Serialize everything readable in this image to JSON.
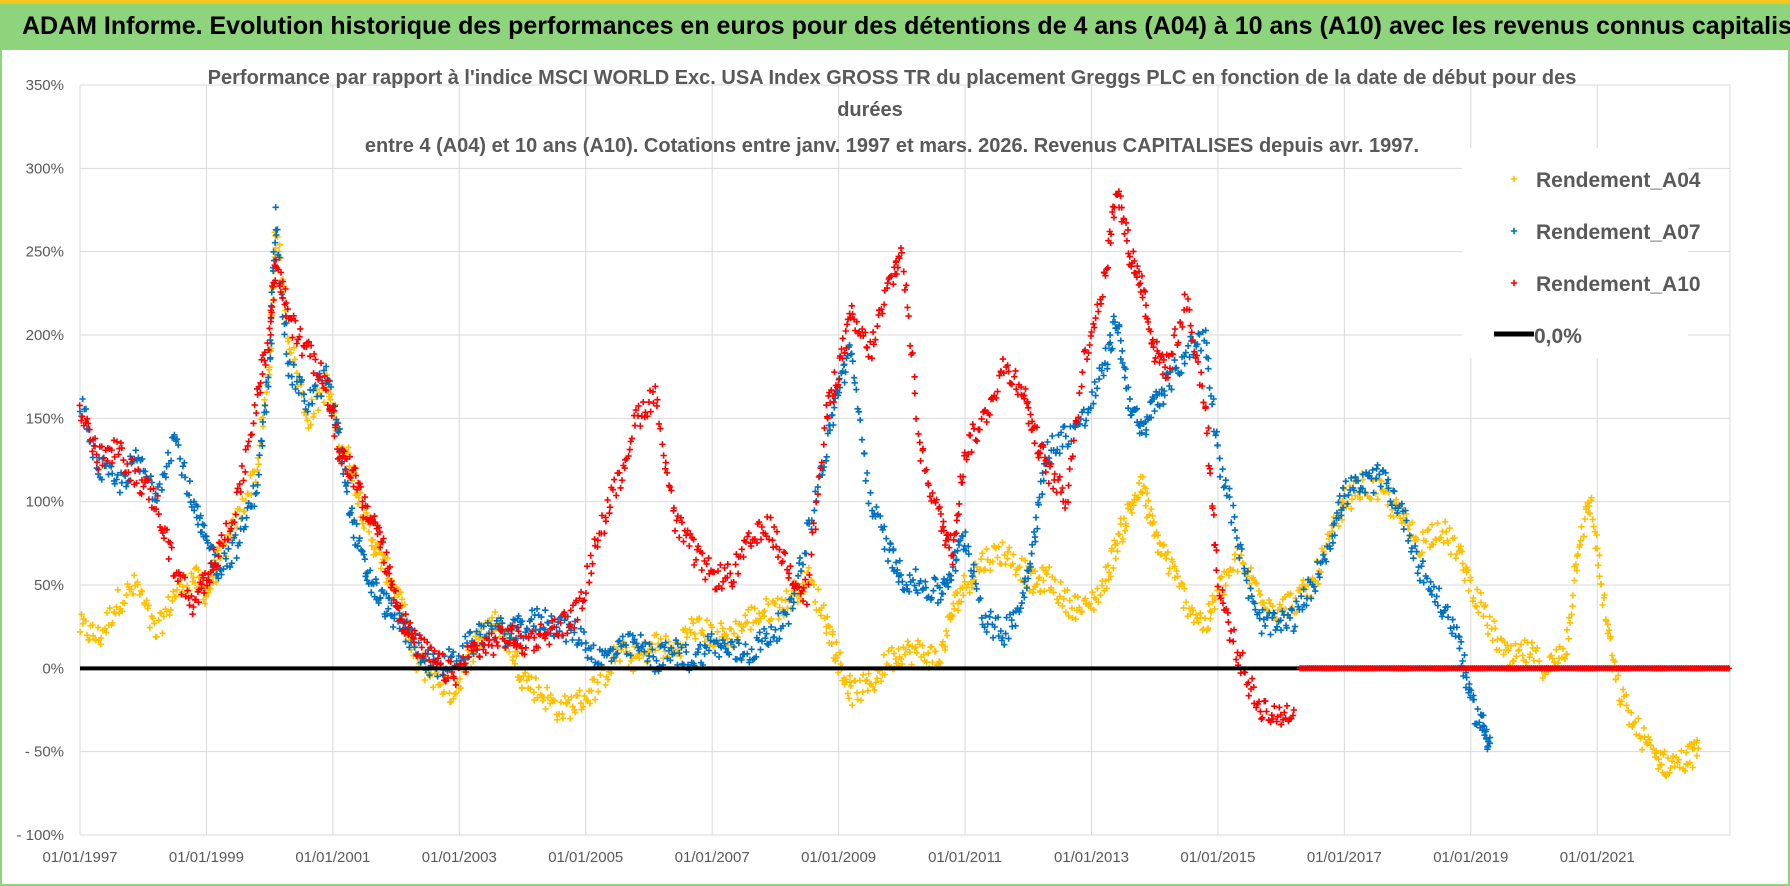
{
  "banner": {
    "title": "ADAM Informe. Evolution historique des performances en euros pour des détentions de 4 ans (A04) à 10 ans (A10) avec les revenus connus capitalisés"
  },
  "colors": {
    "banner_bg": "#8dd47d",
    "banner_top": "#f2c81a",
    "A04": "#ffc000",
    "A07": "#0070c0",
    "A10": "#ff0000",
    "zero": "#000000",
    "grid": "#d9d9d9"
  },
  "chart_data": {
    "type": "scatter",
    "title_lines": [
      "Performance par rapport à l'indice MSCI WORLD Exc. USA Index GROSS TR  du placement Greggs PLC en fonction de la date de début pour des",
      "durées",
      "entre 4 (A04) et 10 ans (A10). Cotations entre janv. 1997 et mars. 2026. Revenus CAPITALISES depuis avr. 1997."
    ],
    "x_ticks": [
      "01/01/1997",
      "01/01/1999",
      "01/01/2001",
      "01/01/2003",
      "01/01/2005",
      "01/01/2007",
      "01/01/2009",
      "01/01/2011",
      "01/01/2013",
      "01/01/2015",
      "01/01/2017",
      "01/01/2019",
      "01/01/2021"
    ],
    "x_range": [
      1997.0,
      2023.1
    ],
    "y_ticks": [
      "350%",
      "300%",
      "250%",
      "200%",
      "150%",
      "100%",
      "50%",
      "0%",
      "- 50%",
      "- 100%"
    ],
    "y_range": [
      -100,
      350
    ],
    "series": [
      {
        "name": "Rendement_A04",
        "color": "#ffc000",
        "points": [
          [
            1997.0,
            25
          ],
          [
            1997.3,
            18
          ],
          [
            1997.6,
            40
          ],
          [
            1997.9,
            50
          ],
          [
            1998.2,
            20
          ],
          [
            1998.5,
            45
          ],
          [
            1998.8,
            55
          ],
          [
            1999.0,
            45
          ],
          [
            1999.2,
            65
          ],
          [
            1999.5,
            90
          ],
          [
            1999.8,
            120
          ],
          [
            2000.0,
            180
          ],
          [
            2000.1,
            265
          ],
          [
            2000.3,
            200
          ],
          [
            2000.6,
            150
          ],
          [
            2000.9,
            170
          ],
          [
            2001.1,
            140
          ],
          [
            2001.3,
            120
          ],
          [
            2001.5,
            90
          ],
          [
            2001.7,
            70
          ],
          [
            2001.9,
            55
          ],
          [
            2002.1,
            35
          ],
          [
            2002.3,
            5
          ],
          [
            2002.6,
            -5
          ],
          [
            2002.9,
            -15
          ],
          [
            2003.2,
            10
          ],
          [
            2003.5,
            30
          ],
          [
            2003.8,
            15
          ],
          [
            2004.0,
            -5
          ],
          [
            2004.3,
            -15
          ],
          [
            2004.6,
            -25
          ],
          [
            2004.9,
            -20
          ],
          [
            2005.2,
            -10
          ],
          [
            2005.5,
            10
          ],
          [
            2005.8,
            5
          ],
          [
            2006.1,
            15
          ],
          [
            2006.4,
            10
          ],
          [
            2006.7,
            25
          ],
          [
            2007.0,
            20
          ],
          [
            2007.3,
            20
          ],
          [
            2007.6,
            30
          ],
          [
            2007.9,
            35
          ],
          [
            2008.2,
            40
          ],
          [
            2008.5,
            55
          ],
          [
            2008.8,
            30
          ],
          [
            2009.0,
            5
          ],
          [
            2009.2,
            -15
          ],
          [
            2009.5,
            -10
          ],
          [
            2009.8,
            5
          ],
          [
            2010.0,
            10
          ],
          [
            2010.3,
            10
          ],
          [
            2010.6,
            5
          ],
          [
            2010.8,
            35
          ],
          [
            2011.0,
            50
          ],
          [
            2011.3,
            65
          ],
          [
            2011.6,
            70
          ],
          [
            2011.9,
            60
          ],
          [
            2012.1,
            50
          ],
          [
            2012.3,
            55
          ],
          [
            2012.6,
            40
          ],
          [
            2012.9,
            35
          ],
          [
            2013.2,
            50
          ],
          [
            2013.4,
            75
          ],
          [
            2013.6,
            95
          ],
          [
            2013.8,
            110
          ],
          [
            2014.0,
            80
          ],
          [
            2014.2,
            65
          ],
          [
            2014.5,
            40
          ],
          [
            2014.8,
            25
          ],
          [
            2015.0,
            45
          ],
          [
            2015.3,
            65
          ],
          [
            2015.6,
            50
          ],
          [
            2015.9,
            35
          ],
          [
            2016.2,
            40
          ],
          [
            2016.5,
            50
          ],
          [
            2016.8,
            80
          ],
          [
            2017.0,
            100
          ],
          [
            2017.3,
            110
          ],
          [
            2017.6,
            105
          ],
          [
            2017.9,
            90
          ],
          [
            2018.2,
            75
          ],
          [
            2018.5,
            85
          ],
          [
            2018.8,
            70
          ],
          [
            2019.0,
            50
          ],
          [
            2019.3,
            25
          ],
          [
            2019.6,
            5
          ],
          [
            2019.9,
            10
          ],
          [
            2020.2,
            0
          ],
          [
            2020.5,
            10
          ],
          [
            2020.7,
            75
          ],
          [
            2020.9,
            100
          ],
          [
            2021.1,
            40
          ],
          [
            2021.3,
            -10
          ],
          [
            2021.6,
            -35
          ],
          [
            2021.9,
            -52
          ],
          [
            2022.1,
            -58
          ],
          [
            2022.4,
            -55
          ],
          [
            2022.6,
            -48
          ]
        ]
      },
      {
        "name": "Rendement_A07",
        "color": "#0070c0",
        "points": [
          [
            1997.0,
            160
          ],
          [
            1997.3,
            120
          ],
          [
            1997.6,
            110
          ],
          [
            1997.9,
            125
          ],
          [
            1998.2,
            105
          ],
          [
            1998.5,
            140
          ],
          [
            1998.8,
            95
          ],
          [
            1999.0,
            75
          ],
          [
            1999.2,
            60
          ],
          [
            1999.5,
            75
          ],
          [
            1999.8,
            110
          ],
          [
            2000.0,
            180
          ],
          [
            2000.1,
            270
          ],
          [
            2000.3,
            180
          ],
          [
            2000.6,
            160
          ],
          [
            2000.9,
            175
          ],
          [
            2001.1,
            140
          ],
          [
            2001.3,
            90
          ],
          [
            2001.5,
            60
          ],
          [
            2001.7,
            45
          ],
          [
            2001.9,
            35
          ],
          [
            2002.1,
            25
          ],
          [
            2002.3,
            15
          ],
          [
            2002.6,
            0
          ],
          [
            2002.9,
            5
          ],
          [
            2003.2,
            15
          ],
          [
            2003.5,
            25
          ],
          [
            2003.8,
            20
          ],
          [
            2004.0,
            25
          ],
          [
            2004.3,
            30
          ],
          [
            2004.6,
            25
          ],
          [
            2004.9,
            20
          ],
          [
            2005.2,
            5
          ],
          [
            2005.5,
            10
          ],
          [
            2005.8,
            15
          ],
          [
            2006.1,
            5
          ],
          [
            2006.4,
            10
          ],
          [
            2006.7,
            5
          ],
          [
            2007.0,
            15
          ],
          [
            2007.3,
            10
          ],
          [
            2007.6,
            10
          ],
          [
            2007.9,
            20
          ],
          [
            2008.2,
            30
          ],
          [
            2008.5,
            80
          ],
          [
            2008.8,
            130
          ],
          [
            2009.0,
            170
          ],
          [
            2009.2,
            190
          ],
          [
            2009.5,
            100
          ],
          [
            2009.8,
            70
          ],
          [
            2010.0,
            55
          ],
          [
            2010.3,
            50
          ],
          [
            2010.6,
            45
          ],
          [
            2010.8,
            60
          ],
          [
            2011.0,
            80
          ],
          [
            2011.3,
            30
          ],
          [
            2011.6,
            20
          ],
          [
            2011.9,
            40
          ],
          [
            2012.1,
            80
          ],
          [
            2012.3,
            130
          ],
          [
            2012.6,
            140
          ],
          [
            2012.9,
            150
          ],
          [
            2013.2,
            180
          ],
          [
            2013.4,
            210
          ],
          [
            2013.6,
            160
          ],
          [
            2013.8,
            140
          ],
          [
            2014.0,
            160
          ],
          [
            2014.2,
            170
          ],
          [
            2014.5,
            190
          ],
          [
            2014.8,
            200
          ],
          [
            2015.0,
            130
          ],
          [
            2015.3,
            80
          ],
          [
            2015.6,
            30
          ],
          [
            2015.9,
            25
          ],
          [
            2016.2,
            30
          ],
          [
            2016.5,
            50
          ],
          [
            2016.8,
            80
          ],
          [
            2017.0,
            105
          ],
          [
            2017.3,
            110
          ],
          [
            2017.6,
            115
          ],
          [
            2017.9,
            95
          ],
          [
            2018.2,
            60
          ],
          [
            2018.5,
            40
          ],
          [
            2018.8,
            20
          ],
          [
            2019.0,
            -20
          ],
          [
            2019.2,
            -35
          ],
          [
            2019.3,
            -45
          ]
        ]
      },
      {
        "name": "Rendement_A10",
        "color": "#ff0000",
        "points": [
          [
            1997.0,
            155
          ],
          [
            1997.3,
            125
          ],
          [
            1997.6,
            130
          ],
          [
            1997.9,
            115
          ],
          [
            1998.2,
            100
          ],
          [
            1998.5,
            60
          ],
          [
            1998.8,
            35
          ],
          [
            1999.0,
            55
          ],
          [
            1999.2,
            70
          ],
          [
            1999.5,
            100
          ],
          [
            1999.8,
            165
          ],
          [
            2000.0,
            200
          ],
          [
            2000.1,
            245
          ],
          [
            2000.3,
            210
          ],
          [
            2000.6,
            190
          ],
          [
            2000.9,
            170
          ],
          [
            2001.1,
            130
          ],
          [
            2001.3,
            120
          ],
          [
            2001.5,
            95
          ],
          [
            2001.7,
            85
          ],
          [
            2001.9,
            55
          ],
          [
            2002.1,
            30
          ],
          [
            2002.3,
            15
          ],
          [
            2002.6,
            5
          ],
          [
            2002.9,
            -5
          ],
          [
            2003.2,
            10
          ],
          [
            2003.5,
            15
          ],
          [
            2003.8,
            20
          ],
          [
            2004.0,
            15
          ],
          [
            2004.3,
            20
          ],
          [
            2004.6,
            25
          ],
          [
            2004.9,
            35
          ],
          [
            2005.2,
            80
          ],
          [
            2005.5,
            110
          ],
          [
            2005.8,
            150
          ],
          [
            2006.1,
            165
          ],
          [
            2006.4,
            90
          ],
          [
            2006.7,
            70
          ],
          [
            2007.0,
            55
          ],
          [
            2007.3,
            55
          ],
          [
            2007.6,
            75
          ],
          [
            2007.9,
            85
          ],
          [
            2008.2,
            60
          ],
          [
            2008.5,
            45
          ],
          [
            2008.8,
            150
          ],
          [
            2009.0,
            180
          ],
          [
            2009.2,
            210
          ],
          [
            2009.5,
            190
          ],
          [
            2009.8,
            230
          ],
          [
            2010.0,
            250
          ],
          [
            2010.3,
            130
          ],
          [
            2010.6,
            90
          ],
          [
            2010.8,
            70
          ],
          [
            2011.0,
            130
          ],
          [
            2011.3,
            150
          ],
          [
            2011.6,
            180
          ],
          [
            2011.9,
            170
          ],
          [
            2012.1,
            140
          ],
          [
            2012.3,
            120
          ],
          [
            2012.6,
            100
          ],
          [
            2012.9,
            190
          ],
          [
            2013.2,
            230
          ],
          [
            2013.4,
            290
          ],
          [
            2013.6,
            250
          ],
          [
            2013.8,
            230
          ],
          [
            2014.0,
            190
          ],
          [
            2014.2,
            180
          ],
          [
            2014.5,
            220
          ],
          [
            2014.8,
            160
          ],
          [
            2015.0,
            50
          ],
          [
            2015.3,
            10
          ],
          [
            2015.6,
            -20
          ],
          [
            2015.9,
            -30
          ],
          [
            2016.2,
            -25
          ]
        ],
        "flat_zero_range": [
          2016.3,
          2023.1
        ]
      }
    ],
    "zero_line": {
      "label": "0,0%",
      "x_start": 1997.0,
      "x_end": 2023.1
    }
  }
}
